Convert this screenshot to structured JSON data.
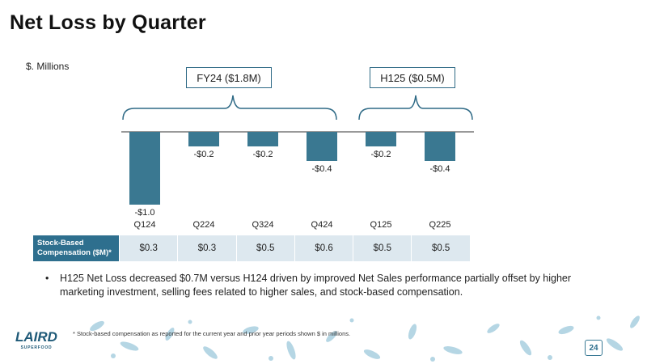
{
  "title": "Net Loss by Quarter",
  "units_label": "$. Millions",
  "periods": [
    {
      "label": "FY24 ($1.8M)"
    },
    {
      "label": "H125 ($0.5M)"
    }
  ],
  "chart_data": {
    "type": "bar",
    "title": "Net Loss by Quarter",
    "ylabel": "$. Millions",
    "categories": [
      "Q124",
      "Q224",
      "Q324",
      "Q424",
      "Q125",
      "Q225"
    ],
    "values": [
      -1.0,
      -0.2,
      -0.2,
      -0.4,
      -0.2,
      -0.4
    ],
    "data_labels": [
      "-$1.0",
      "-$0.2",
      "-$0.2",
      "-$0.4",
      "-$0.2",
      "-$0.4"
    ],
    "ylim": [
      -1.0,
      0
    ],
    "bar_color": "#3a7891"
  },
  "sbc_table": {
    "header": "Stock-Based Compensation ($M)*",
    "values": [
      "$0.3",
      "$0.3",
      "$0.5",
      "$0.6",
      "$0.5",
      "$0.5"
    ]
  },
  "bullets": [
    "H125 Net Loss decreased $0.7M versus H124 driven by improved Net Sales performance partially offset by higher marketing investment, selling fees related to higher sales, and stock-based compensation."
  ],
  "footnote": "* Stock-based compensation as reported for the current year and prior year periods shown $ in millions.",
  "logo": {
    "text": "LAIRD",
    "subtext": "SUPERFOOD"
  },
  "page_number": "24",
  "colors": {
    "accent": "#2e6f8e",
    "decor": "#a9cfe0",
    "table_bg": "#dde8ef"
  }
}
